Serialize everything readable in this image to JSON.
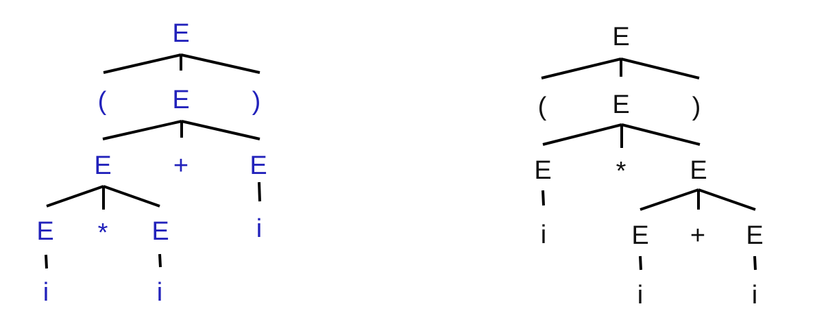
{
  "colors": {
    "left_tree": "#2222bb",
    "right_tree": "#111111",
    "edges": "#000000"
  },
  "left_tree": {
    "root": "E",
    "lparen": "(",
    "mid": "E",
    "rparen": ")",
    "l2_left": "E",
    "l2_op": "+",
    "l2_right": "E",
    "l3_left": "E",
    "l3_op": "*",
    "l3_right": "E",
    "l3_i": "i",
    "leaf_left": "i",
    "leaf_right": "i"
  },
  "right_tree": {
    "root": "E",
    "lparen": "(",
    "mid": "E",
    "rparen": ")",
    "l2_left": "E",
    "l2_op": "*",
    "l2_right": "E",
    "l3_i": "i",
    "l3_left": "E",
    "l3_op": "+",
    "l3_right": "E",
    "leaf_left": "i",
    "leaf_right": "i"
  }
}
